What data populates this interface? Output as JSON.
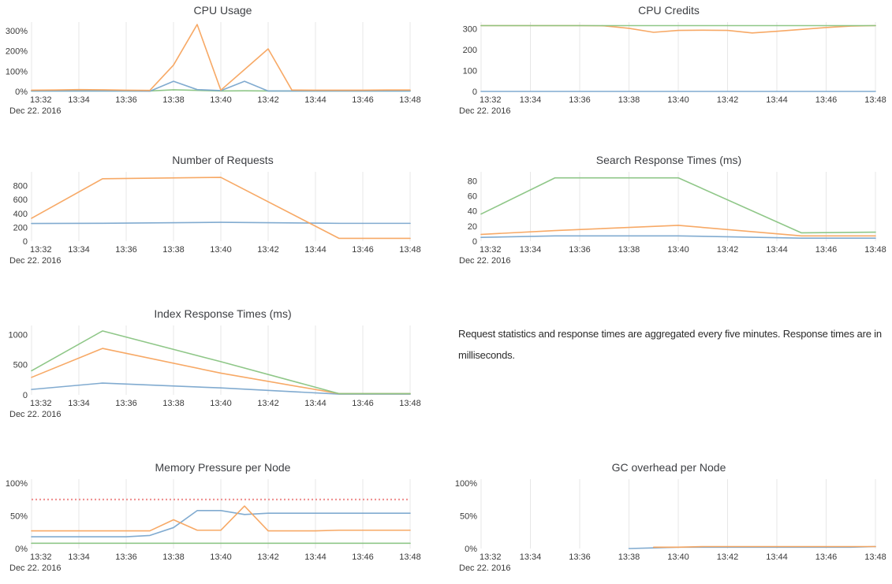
{
  "page": {
    "background": "#ffffff"
  },
  "palette": {
    "grid": "#e7e7e7",
    "blue": "#7aa6cd",
    "orange": "#f7a45e",
    "green": "#89c482",
    "threshold_red": "#ee8888"
  },
  "note": {
    "text": "Request statistics and response times are aggregated every five minutes. Response times are in milliseconds."
  },
  "chart_data": [
    {
      "type": "line",
      "title": "CPU Usage",
      "date_label": "Dec 22. 2016",
      "x_ticks": [
        "13:32",
        "13:34",
        "13:36",
        "13:38",
        "13:40",
        "13:42",
        "13:44",
        "13:46",
        "13:48"
      ],
      "x_tick_pos": [
        0,
        2,
        4,
        6,
        8,
        10,
        12,
        14,
        16
      ],
      "x_range": [
        0,
        16
      ],
      "ylim": [
        0,
        342
      ],
      "y_ticks": [
        {
          "v": 0,
          "label": "0%"
        },
        {
          "v": 100,
          "label": "100%"
        },
        {
          "v": 200,
          "label": "200%"
        },
        {
          "v": 300,
          "label": "300%"
        }
      ],
      "series": [
        {
          "name": "series-green",
          "color": "#89c482",
          "x": [
            0,
            1,
            2,
            3,
            4,
            5,
            6,
            7,
            8,
            9,
            10,
            11,
            12,
            13,
            14,
            15,
            16
          ],
          "y": [
            2,
            2,
            2,
            2,
            2,
            2,
            8,
            5,
            2,
            3,
            2,
            2,
            2,
            2,
            2,
            2,
            2
          ]
        },
        {
          "name": "series-blue",
          "color": "#7aa6cd",
          "x": [
            0,
            1,
            2,
            3,
            4,
            5,
            6,
            7,
            8,
            9,
            10,
            11,
            12,
            13,
            14,
            15,
            16
          ],
          "y": [
            2,
            2,
            2,
            2,
            2,
            1,
            50,
            9,
            4,
            50,
            2,
            2,
            2,
            2,
            2,
            2,
            2
          ]
        },
        {
          "name": "series-orange",
          "color": "#f7a45e",
          "x": [
            0,
            1,
            2,
            3,
            4,
            5,
            6,
            7,
            8,
            9,
            10,
            11,
            12,
            13,
            14,
            15,
            16
          ],
          "y": [
            6,
            7,
            9,
            8,
            6,
            5,
            130,
            330,
            6,
            108,
            210,
            7,
            6,
            6,
            6,
            7,
            7
          ]
        }
      ]
    },
    {
      "type": "line",
      "title": "CPU Credits",
      "date_label": "Dec 22. 2016",
      "x_ticks": [
        "13:32",
        "13:34",
        "13:36",
        "13:38",
        "13:40",
        "13:42",
        "13:44",
        "13:46",
        "13:48"
      ],
      "x_tick_pos": [
        0,
        2,
        4,
        6,
        8,
        10,
        12,
        14,
        16
      ],
      "x_range": [
        0,
        16
      ],
      "ylim": [
        0,
        332
      ],
      "y_ticks": [
        {
          "v": 0,
          "label": "0"
        },
        {
          "v": 100,
          "label": "100"
        },
        {
          "v": 200,
          "label": "200"
        },
        {
          "v": 300,
          "label": "300"
        }
      ],
      "series": [
        {
          "name": "series-blue",
          "color": "#7aa6cd",
          "x": [
            0,
            16
          ],
          "y": [
            0,
            0
          ]
        },
        {
          "name": "series-orange",
          "color": "#f7a45e",
          "x": [
            0,
            1,
            2,
            3,
            4,
            5,
            6,
            7,
            8,
            9,
            10,
            11,
            12,
            13,
            14,
            15,
            16
          ],
          "y": [
            315,
            315,
            315,
            315,
            315,
            314,
            302,
            283,
            292,
            293,
            292,
            280,
            288,
            297,
            306,
            313,
            315
          ]
        },
        {
          "name": "series-green",
          "color": "#89c482",
          "x": [
            0,
            16
          ],
          "y": [
            315,
            315
          ]
        }
      ]
    },
    {
      "type": "line",
      "title": "Number of Requests",
      "date_label": "Dec 22. 2016",
      "x_ticks": [
        "13:32",
        "13:34",
        "13:36",
        "13:38",
        "13:40",
        "13:42",
        "13:44",
        "13:46",
        "13:48"
      ],
      "x_tick_pos": [
        0,
        2,
        4,
        6,
        8,
        10,
        12,
        14,
        16
      ],
      "x_range": [
        0,
        16
      ],
      "ylim": [
        0,
        1000
      ],
      "y_ticks": [
        {
          "v": 0,
          "label": "0"
        },
        {
          "v": 200,
          "label": "200"
        },
        {
          "v": 400,
          "label": "400"
        },
        {
          "v": 600,
          "label": "600"
        },
        {
          "v": 800,
          "label": "800"
        }
      ],
      "series": [
        {
          "name": "series-blue",
          "color": "#7aa6cd",
          "x": [
            0,
            3,
            8,
            13,
            16
          ],
          "y": [
            255,
            258,
            272,
            257,
            257
          ]
        },
        {
          "name": "series-orange",
          "color": "#f7a45e",
          "x": [
            0,
            3,
            8,
            13,
            16
          ],
          "y": [
            330,
            900,
            920,
            40,
            40
          ]
        }
      ]
    },
    {
      "type": "line",
      "title": "Search Response Times (ms)",
      "date_label": "Dec 22. 2016",
      "x_ticks": [
        "13:32",
        "13:34",
        "13:36",
        "13:38",
        "13:40",
        "13:42",
        "13:44",
        "13:46",
        "13:48"
      ],
      "x_tick_pos": [
        0,
        2,
        4,
        6,
        8,
        10,
        12,
        14,
        16
      ],
      "x_range": [
        0,
        16
      ],
      "ylim": [
        0,
        92
      ],
      "y_ticks": [
        {
          "v": 0,
          "label": "0"
        },
        {
          "v": 20,
          "label": "20"
        },
        {
          "v": 40,
          "label": "40"
        },
        {
          "v": 60,
          "label": "60"
        },
        {
          "v": 80,
          "label": "80"
        }
      ],
      "series": [
        {
          "name": "series-blue",
          "color": "#7aa6cd",
          "x": [
            0,
            3,
            8,
            13,
            16
          ],
          "y": [
            5,
            7,
            7,
            4,
            4
          ]
        },
        {
          "name": "series-orange",
          "color": "#f7a45e",
          "x": [
            0,
            3,
            8,
            13,
            16
          ],
          "y": [
            9,
            14,
            21,
            7,
            7
          ]
        },
        {
          "name": "series-green",
          "color": "#89c482",
          "x": [
            0,
            3,
            8,
            13,
            16
          ],
          "y": [
            36,
            84,
            84,
            11,
            12
          ]
        }
      ]
    },
    {
      "type": "line",
      "title": "Index Response Times (ms)",
      "date_label": "Dec 22. 2016",
      "x_ticks": [
        "13:32",
        "13:34",
        "13:36",
        "13:38",
        "13:40",
        "13:42",
        "13:44",
        "13:46",
        "13:48"
      ],
      "x_tick_pos": [
        0,
        2,
        4,
        6,
        8,
        10,
        12,
        14,
        16
      ],
      "x_range": [
        0,
        16
      ],
      "ylim": [
        0,
        1150
      ],
      "y_ticks": [
        {
          "v": 0,
          "label": "0"
        },
        {
          "v": 500,
          "label": "500"
        },
        {
          "v": 1000,
          "label": "1000"
        }
      ],
      "series": [
        {
          "name": "series-blue",
          "color": "#7aa6cd",
          "x": [
            0,
            3,
            8,
            13,
            16
          ],
          "y": [
            90,
            195,
            115,
            12,
            12
          ]
        },
        {
          "name": "series-orange",
          "color": "#f7a45e",
          "x": [
            0,
            3,
            8,
            13,
            16
          ],
          "y": [
            290,
            770,
            360,
            20,
            20
          ]
        },
        {
          "name": "series-green",
          "color": "#89c482",
          "x": [
            0,
            3,
            8,
            13,
            16
          ],
          "y": [
            400,
            1060,
            550,
            20,
            20
          ]
        }
      ]
    },
    {
      "type": "line",
      "title": "Memory Pressure per Node",
      "date_label": "Dec 22. 2016",
      "x_ticks": [
        "13:32",
        "13:34",
        "13:36",
        "13:38",
        "13:40",
        "13:42",
        "13:44",
        "13:46",
        "13:48"
      ],
      "x_tick_pos": [
        0,
        2,
        4,
        6,
        8,
        10,
        12,
        14,
        16
      ],
      "x_range": [
        0,
        16
      ],
      "ylim": [
        0,
        106
      ],
      "y_ticks": [
        {
          "v": 0,
          "label": "0%"
        },
        {
          "v": 50,
          "label": "50%"
        },
        {
          "v": 100,
          "label": "100%"
        }
      ],
      "threshold": {
        "value": 75,
        "color": "#ee8888",
        "style": "dotted"
      },
      "series": [
        {
          "name": "series-green",
          "color": "#89c482",
          "x": [
            0,
            16
          ],
          "y": [
            8,
            8
          ]
        },
        {
          "name": "series-blue",
          "color": "#7aa6cd",
          "x": [
            0,
            1,
            2,
            3,
            4,
            5,
            6,
            7,
            8,
            9,
            10,
            11,
            12,
            13,
            14,
            15,
            16
          ],
          "y": [
            18,
            18,
            18,
            18,
            18,
            20,
            32,
            58,
            58,
            52,
            54,
            54,
            54,
            54,
            54,
            54,
            54
          ]
        },
        {
          "name": "series-orange",
          "color": "#f7a45e",
          "x": [
            0,
            1,
            2,
            3,
            4,
            5,
            6,
            7,
            8,
            9,
            10,
            11,
            12,
            13,
            14,
            15,
            16
          ],
          "y": [
            27,
            27,
            27,
            27,
            27,
            27,
            44,
            28,
            28,
            65,
            27,
            27,
            27,
            28,
            28,
            28,
            28
          ]
        }
      ]
    },
    {
      "type": "line",
      "title": "GC overhead per Node",
      "date_label": "Dec 22. 2016",
      "x_ticks": [
        "13:32",
        "13:34",
        "13:36",
        "13:38",
        "13:40",
        "13:42",
        "13:44",
        "13:46",
        "13:48"
      ],
      "x_tick_pos": [
        0,
        2,
        4,
        6,
        8,
        10,
        12,
        14,
        16
      ],
      "x_range": [
        0,
        16
      ],
      "ylim": [
        0,
        106
      ],
      "y_ticks": [
        {
          "v": 0,
          "label": "0%"
        },
        {
          "v": 50,
          "label": "50%"
        },
        {
          "v": 100,
          "label": "100%"
        }
      ],
      "series": [
        {
          "name": "series-blue",
          "color": "#7aa6cd",
          "x": [
            6,
            7,
            8,
            9,
            10,
            11,
            12,
            13,
            14,
            15,
            16
          ],
          "y": [
            0,
            1,
            2,
            2,
            2,
            2,
            2,
            2,
            2,
            2,
            3
          ]
        },
        {
          "name": "series-orange",
          "color": "#f7a45e",
          "x": [
            7,
            8,
            9,
            10,
            11,
            12,
            13,
            14,
            15,
            16
          ],
          "y": [
            2,
            2,
            3,
            3,
            3,
            3,
            3,
            3,
            3,
            3
          ]
        }
      ]
    }
  ]
}
